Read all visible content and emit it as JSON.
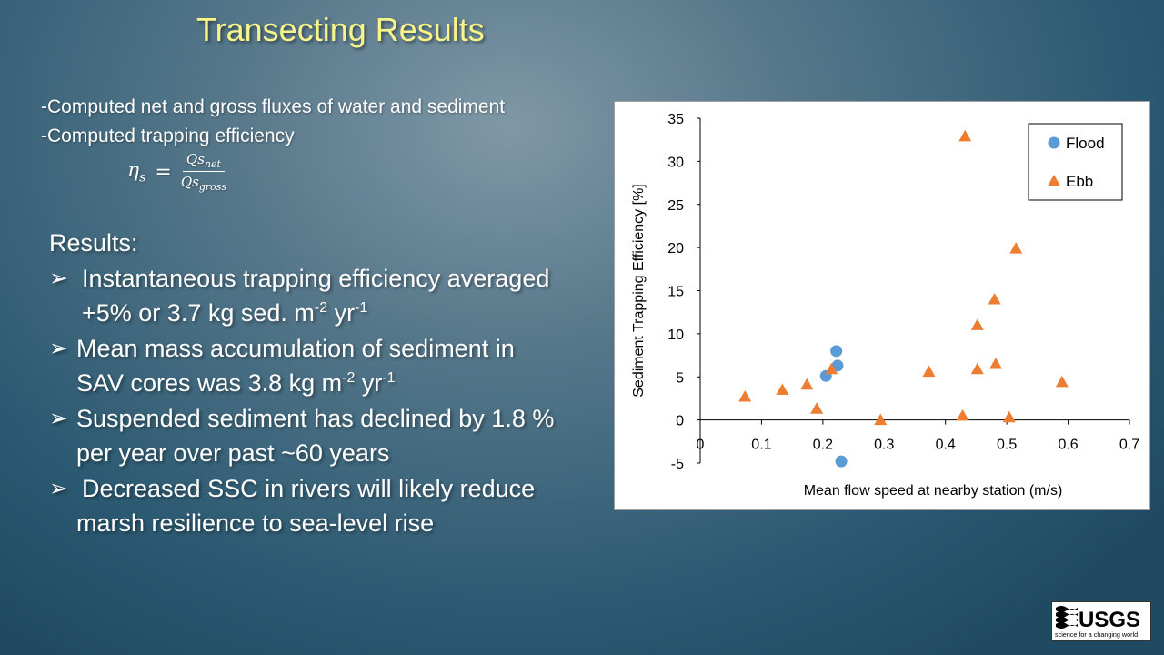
{
  "slide": {
    "title": "Transecting Results",
    "intro": [
      "-Computed net and gross fluxes of water and sediment",
      "-Computed trapping efficiency"
    ],
    "formula": {
      "lhs": "η",
      "lhs_sub": "s",
      "eq": "=",
      "num": "Qs",
      "num_sub": "net",
      "den": "Qs",
      "den_sub": "gross"
    },
    "results_header": "Results:",
    "results": [
      {
        "line1": "Instantaneous trapping efficiency averaged",
        "line2": "+5% or 3.7 kg sed. m",
        "sup1": "-2",
        "mid": " yr",
        "sup2": "-1"
      },
      {
        "line1": "Mean mass accumulation of sediment in",
        "line2": "SAV cores was 3.8 kg m",
        "sup1": "-2",
        "mid": " yr",
        "sup2": "-1"
      },
      {
        "line1": "Suspended sediment has declined by 1.8 %",
        "line2": "per year over past ~60 years"
      },
      {
        "line1": "Decreased SSC in rivers will likely reduce",
        "line2": "marsh resilience to sea-level rise"
      }
    ],
    "logo": {
      "text": "USGS",
      "tagline": "science for a changing world"
    }
  },
  "chart_data": {
    "type": "scatter",
    "xlabel": "Mean flow speed at nearby station (m/s)",
    "ylabel": "Sediment Trapping Efficiency [%]",
    "xlim": [
      0,
      0.7
    ],
    "ylim": [
      -5,
      35
    ],
    "xticks": [
      0,
      0.1,
      0.2,
      0.3,
      0.4,
      0.5,
      0.6,
      0.7
    ],
    "yticks": [
      -5,
      0,
      5,
      10,
      15,
      20,
      25,
      30,
      35
    ],
    "legend": "top-right",
    "series": [
      {
        "name": "Flood",
        "marker": "circle",
        "color": "#5b9bd5",
        "points": [
          [
            0.205,
            5.1
          ],
          [
            0.222,
            8.0
          ],
          [
            0.224,
            6.3
          ],
          [
            0.23,
            -4.8
          ]
        ]
      },
      {
        "name": "Ebb",
        "marker": "triangle",
        "color": "#ed7d31",
        "points": [
          [
            0.073,
            2.7
          ],
          [
            0.134,
            3.5
          ],
          [
            0.174,
            4.1
          ],
          [
            0.19,
            1.3
          ],
          [
            0.214,
            5.9
          ],
          [
            0.294,
            0.0
          ],
          [
            0.373,
            5.6
          ],
          [
            0.428,
            0.5
          ],
          [
            0.432,
            32.9
          ],
          [
            0.452,
            5.9
          ],
          [
            0.452,
            11.0
          ],
          [
            0.48,
            14.0
          ],
          [
            0.482,
            6.5
          ],
          [
            0.504,
            0.3
          ],
          [
            0.515,
            19.9
          ],
          [
            0.59,
            4.4
          ]
        ]
      }
    ]
  }
}
